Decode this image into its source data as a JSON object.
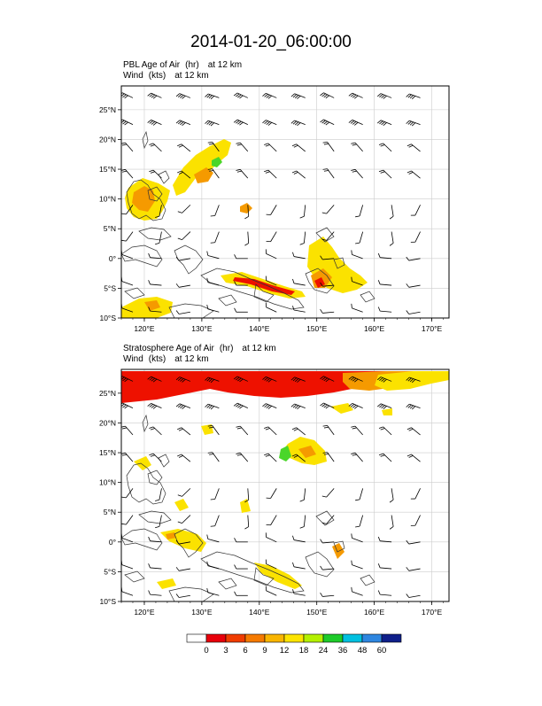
{
  "page": {
    "title": "2014-01-20_06:00:00"
  },
  "panels": [
    {
      "id": "pbl",
      "field_label": "PBL Age of Air",
      "field_units": "(hr)",
      "level_label": "at  12 km",
      "wind_label": "Wind",
      "wind_units": "(kts)",
      "wind_level": "at  12 km",
      "lat_ticks": [
        "25°N",
        "20°N",
        "15°N",
        "10°N",
        "5°N",
        "0°",
        "5°S",
        "10°S"
      ],
      "lat_values": [
        25,
        20,
        15,
        10,
        5,
        0,
        -5,
        -10
      ],
      "lon_ticks": [
        "120°E",
        "130°E",
        "140°E",
        "150°E",
        "160°E",
        "170°E"
      ],
      "lon_values": [
        120,
        130,
        140,
        150,
        160,
        170
      ]
    },
    {
      "id": "strat",
      "field_label": "Stratosphere Age of Air",
      "field_units": "(hr)",
      "level_label": "at  12 km",
      "wind_label": "Wind",
      "wind_units": "(kts)",
      "wind_level": "at  12 km",
      "lat_ticks": [
        "25°N",
        "20°N",
        "15°N",
        "10°N",
        "5°N",
        "0°",
        "5°S",
        "10°S"
      ],
      "lat_values": [
        25,
        20,
        15,
        10,
        5,
        0,
        -5,
        -10
      ],
      "lon_ticks": [
        "120°E",
        "130°E",
        "140°E",
        "150°E",
        "160°E",
        "170°E"
      ],
      "lon_values": [
        120,
        130,
        140,
        150,
        160,
        170
      ]
    }
  ],
  "map_extent": {
    "lon_min": 116,
    "lon_max": 173,
    "lat_min": -10,
    "lat_max": 29
  },
  "colorbar": {
    "labels": [
      "0",
      "3",
      "6",
      "9",
      "12",
      "18",
      "24",
      "36",
      "48",
      "60"
    ],
    "colors": [
      "#ffffff",
      "#e8000b",
      "#f03c00",
      "#f57a00",
      "#f9b500",
      "#fde400",
      "#b4f000",
      "#1ecb2a",
      "#00c0e0",
      "#2e86e0",
      "#0f1f8a"
    ]
  },
  "colors": {
    "red": "#ee1100",
    "orange": "#f59a00",
    "yellow": "#fbe200",
    "light_yellow": "#fdf04a",
    "green": "#4ad62a",
    "coast": "#333333",
    "grid": "#cccccc"
  }
}
